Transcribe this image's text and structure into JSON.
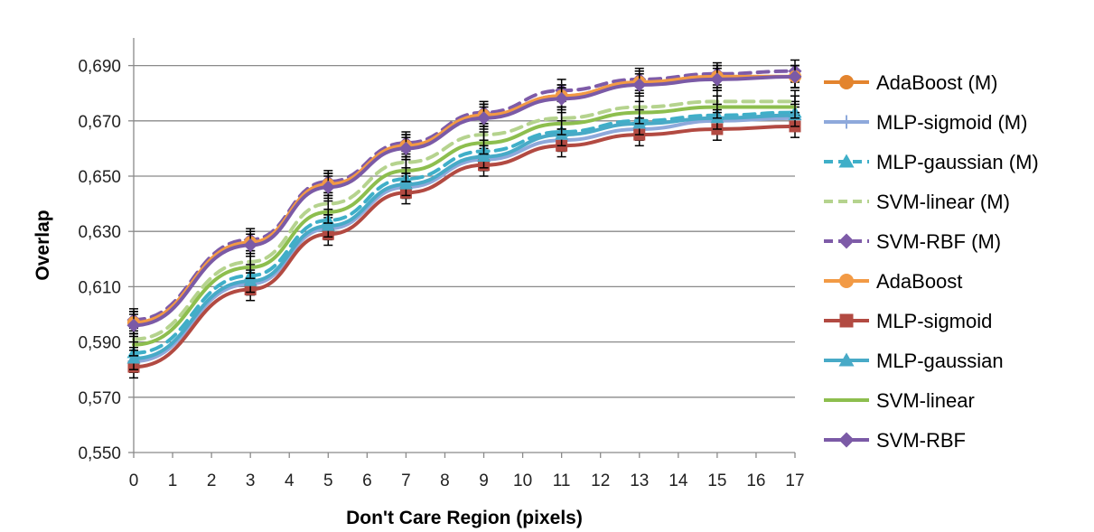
{
  "chart_data": {
    "type": "line",
    "title": "",
    "xlabel": "Don't Care Region (pixels)",
    "ylabel": "Overlap",
    "x_ticks": [
      "0",
      "1",
      "2",
      "3",
      "4",
      "5",
      "6",
      "7",
      "8",
      "9",
      "10",
      "11",
      "12",
      "13",
      "14",
      "15",
      "16",
      "17"
    ],
    "y_ticks": [
      "0,550",
      "0,570",
      "0,590",
      "0,610",
      "0,630",
      "0,650",
      "0,670",
      "0,690"
    ],
    "xlim": [
      0,
      17
    ],
    "ylim": [
      0.55,
      0.7
    ],
    "grid": "horizontal",
    "legend_position": "right",
    "error_bars": true,
    "x": [
      0,
      3,
      5,
      7,
      9,
      11,
      13,
      15,
      17
    ],
    "series": [
      {
        "name": "AdaBoost (M)",
        "color": "#E3842E",
        "dash": false,
        "marker": "circle",
        "values": [
          0.597,
          0.626,
          0.647,
          0.661,
          0.672,
          0.679,
          0.684,
          0.686,
          0.686
        ],
        "err": 0.004
      },
      {
        "name": "MLP-sigmoid (M)",
        "color": "#8EA9DB",
        "dash": false,
        "marker": "plus",
        "values": [
          0.583,
          0.611,
          0.631,
          0.646,
          0.656,
          0.663,
          0.667,
          0.67,
          0.671
        ],
        "err": 0.004
      },
      {
        "name": "MLP-gaussian (M)",
        "color": "#3FAFC8",
        "dash": true,
        "marker": "triangle",
        "values": [
          0.586,
          0.614,
          0.634,
          0.649,
          0.659,
          0.666,
          0.67,
          0.672,
          0.673
        ],
        "err": 0.004
      },
      {
        "name": "SVM-linear (M)",
        "color": "#B5D38E",
        "dash": true,
        "marker": "none",
        "values": [
          0.591,
          0.619,
          0.64,
          0.655,
          0.665,
          0.671,
          0.675,
          0.677,
          0.677
        ],
        "err": 0.004
      },
      {
        "name": "SVM-RBF (M)",
        "color": "#7E5BA8",
        "dash": true,
        "marker": "diamond",
        "values": [
          0.598,
          0.627,
          0.648,
          0.662,
          0.673,
          0.681,
          0.685,
          0.687,
          0.688
        ],
        "err": 0.004
      },
      {
        "name": "AdaBoost",
        "color": "#F29A45",
        "dash": false,
        "marker": "circle",
        "values": [
          0.597,
          0.626,
          0.647,
          0.661,
          0.672,
          0.679,
          0.684,
          0.686,
          0.686
        ],
        "err": 0.004
      },
      {
        "name": "MLP-sigmoid",
        "color": "#B24A42",
        "dash": false,
        "marker": "square",
        "values": [
          0.581,
          0.609,
          0.629,
          0.644,
          0.654,
          0.661,
          0.665,
          0.667,
          0.668
        ],
        "err": 0.004
      },
      {
        "name": "MLP-gaussian",
        "color": "#48AAC7",
        "dash": false,
        "marker": "triangle",
        "values": [
          0.584,
          0.612,
          0.632,
          0.647,
          0.657,
          0.665,
          0.669,
          0.671,
          0.672
        ],
        "err": 0.004
      },
      {
        "name": "SVM-linear",
        "color": "#8DBE4E",
        "dash": false,
        "marker": "none",
        "values": [
          0.589,
          0.617,
          0.637,
          0.652,
          0.662,
          0.669,
          0.673,
          0.675,
          0.675
        ],
        "err": 0.004
      },
      {
        "name": "SVM-RBF",
        "color": "#7B5AA6",
        "dash": false,
        "marker": "diamond",
        "values": [
          0.596,
          0.625,
          0.646,
          0.66,
          0.671,
          0.678,
          0.683,
          0.685,
          0.686
        ],
        "err": 0.004
      }
    ]
  }
}
